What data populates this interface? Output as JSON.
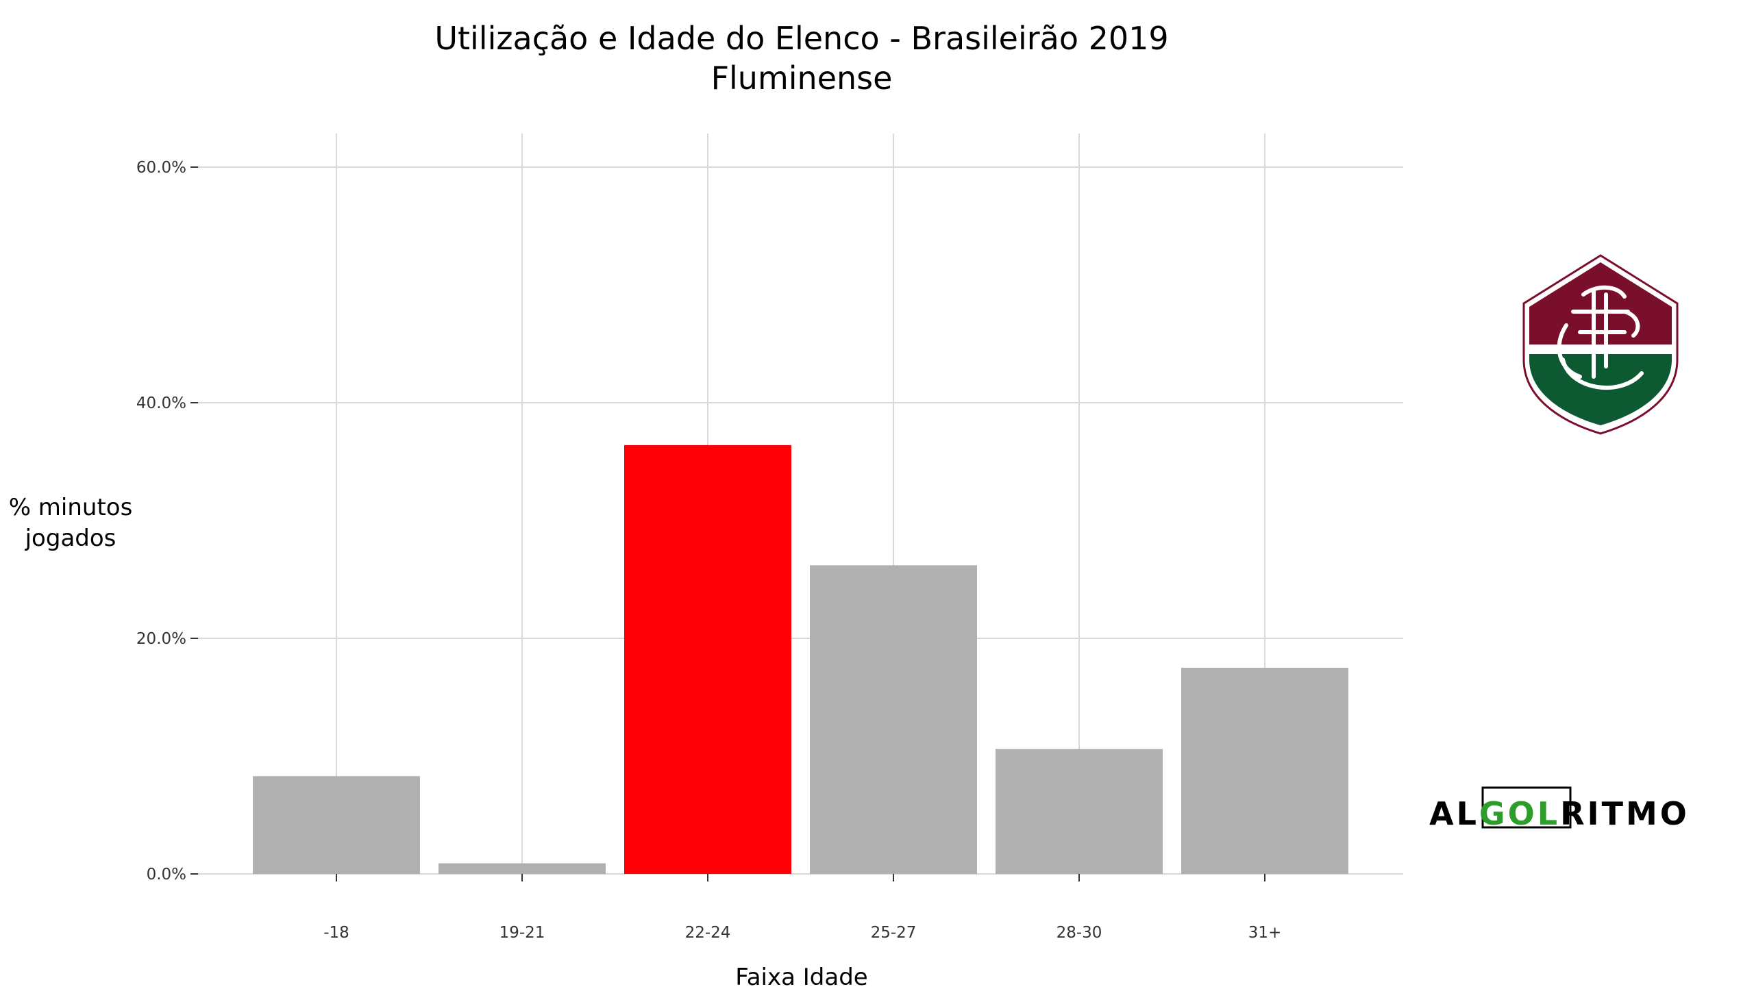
{
  "chart_data": {
    "type": "bar",
    "title": "Utilização e Idade do Elenco - Brasileirão 2019",
    "subtitle": "Fluminense",
    "xlabel": "Faixa Idade",
    "ylabel_line1": "% minutos",
    "ylabel_line2": "jogados",
    "categories": [
      "-18",
      "19-21",
      "22-24",
      "25-27",
      "28-30",
      "31+"
    ],
    "values": [
      8.3,
      0.9,
      36.4,
      26.2,
      10.6,
      17.5
    ],
    "highlight_index": 2,
    "ylim": [
      0,
      60
    ],
    "yticks": [
      0,
      20,
      40,
      60
    ],
    "ytick_labels": [
      "0.0%",
      "20.0%",
      "40.0%",
      "60.0%"
    ],
    "grid": true,
    "colors": {
      "bar": "#b0b0b0",
      "highlight": "#ff0008",
      "grid": "#d9d9d9",
      "axis": "#cccccc"
    }
  },
  "logos": {
    "team_crest": {
      "icon": "fluminense-crest-icon",
      "colors": [
        "#7a0f2b",
        "#ffffff",
        "#0d5a32"
      ]
    },
    "brand": {
      "text_before": "AL",
      "text_highlight": "GOL",
      "text_after": "RITMO",
      "colors": {
        "main": "#000000",
        "highlight": "#2e9e2b"
      }
    }
  }
}
